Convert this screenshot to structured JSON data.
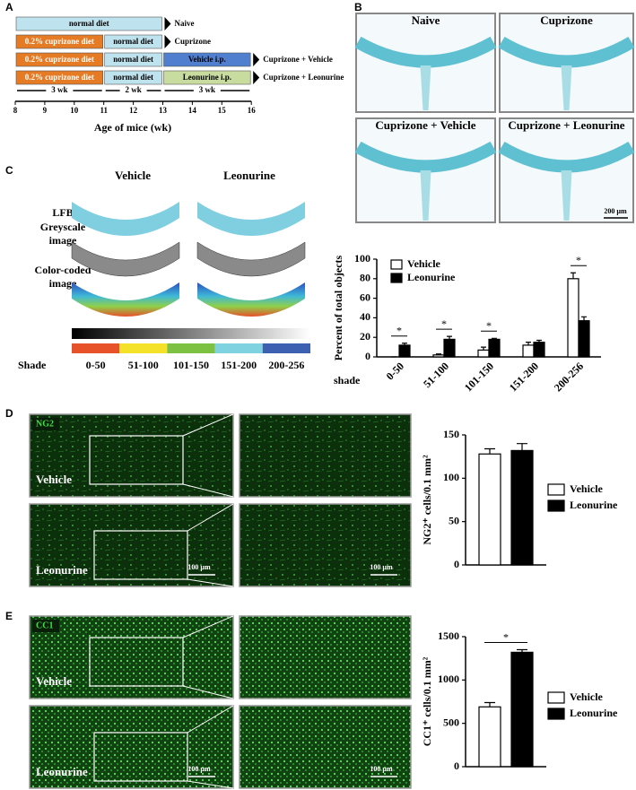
{
  "panel_labels": [
    "A",
    "B",
    "C",
    "D",
    "E"
  ],
  "timeline": {
    "rows": [
      {
        "segments": [
          "normal diet"
        ],
        "label": "Naive"
      },
      {
        "segments": [
          "0.2% cuprizone diet",
          "normal diet"
        ],
        "label": "Cuprizone"
      },
      {
        "segments": [
          "0.2% cuprizone diet",
          "normal diet",
          "Vehicle  i.p."
        ],
        "label": "Cuprizone + Vehicle"
      },
      {
        "segments": [
          "0.2% cuprizone diet",
          "normal diet",
          "Leonurine i.p."
        ],
        "label": "Cuprizone + Leonurine"
      }
    ],
    "durations": [
      "3 wk",
      "2 wk",
      "3 wk"
    ],
    "ticks": [
      8,
      9,
      10,
      11,
      12,
      13,
      14,
      15,
      16
    ],
    "axis_label": "Age of mice (wk)"
  },
  "panel_b": {
    "images": [
      "Naive",
      "Cuprizone",
      "Cuprizone + Vehicle",
      "Cuprizone + Leonurine"
    ],
    "scale_bar": "200 µm"
  },
  "panel_c": {
    "columns": [
      "Vehicle",
      "Leonurine"
    ],
    "rows": [
      "LFB",
      "Greyscale\nimage",
      "Color-coded\nimage"
    ],
    "shade_label": "Shade",
    "shade_ranges": [
      "0-50",
      "51-100",
      "101-150",
      "151-200",
      "200-256"
    ]
  },
  "panel_d": {
    "stain": "NG2",
    "groups": [
      "Vehicle",
      "Leonurine"
    ],
    "scale_bar": "100 µm"
  },
  "panel_e": {
    "stain": "CC1",
    "groups": [
      "Vehicle",
      "Leonurine"
    ],
    "scale_bar": "100 µm"
  },
  "chart_data": [
    {
      "type": "bar",
      "ylabel": "Percent of total objects",
      "xlabel": "shade",
      "categories": [
        "0-50",
        "51-100",
        "101-150",
        "151-200",
        "200-256"
      ],
      "series": [
        {
          "name": "Vehicle",
          "color": "#ffffff",
          "values": [
            0,
            2,
            7,
            12,
            80
          ],
          "errors": [
            0,
            1,
            3,
            3,
            6
          ]
        },
        {
          "name": "Leonurine",
          "color": "#000000",
          "values": [
            12,
            18,
            18,
            15,
            37
          ],
          "errors": [
            2,
            3,
            1,
            2,
            4
          ]
        }
      ],
      "significance": [
        "*",
        "*",
        "*",
        null,
        "*"
      ],
      "ylim": [
        0,
        100
      ],
      "yticks": [
        0,
        20,
        40,
        60,
        80,
        100
      ]
    },
    {
      "type": "bar",
      "ylabel": "NG2⁺ cells/0.1 mm²",
      "categories": [
        null
      ],
      "series": [
        {
          "name": "Vehicle",
          "color": "#ffffff",
          "values": [
            128
          ],
          "errors": [
            6
          ]
        },
        {
          "name": "Leonurine",
          "color": "#000000",
          "values": [
            132
          ],
          "errors": [
            8
          ]
        }
      ],
      "ylim": [
        0,
        150
      ],
      "yticks": [
        0,
        50,
        100,
        150
      ]
    },
    {
      "type": "bar",
      "ylabel": "CC1⁺ cells/0.1 mm²",
      "categories": [
        null
      ],
      "series": [
        {
          "name": "Vehicle",
          "color": "#ffffff",
          "values": [
            690
          ],
          "errors": [
            50
          ]
        },
        {
          "name": "Leonurine",
          "color": "#000000",
          "values": [
            1320
          ],
          "errors": [
            30
          ]
        }
      ],
      "significance": [
        "*"
      ],
      "ylim": [
        0,
        1500
      ],
      "yticks": [
        0,
        500,
        1000,
        1500
      ]
    }
  ]
}
